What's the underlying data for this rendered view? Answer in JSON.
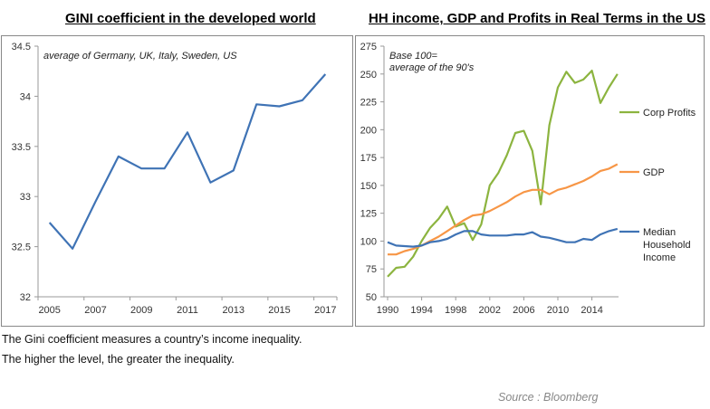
{
  "chart_data": [
    {
      "type": "line",
      "title": "GINI coefficient in the developed world",
      "annotation": "average of Germany, UK, Italy, Sweden, US",
      "x": [
        2005,
        2006,
        2007,
        2008,
        2009,
        2010,
        2011,
        2012,
        2013,
        2014,
        2015,
        2016,
        2017
      ],
      "xticks": [
        "2005",
        "2007",
        "2009",
        "2011",
        "2013",
        "2015",
        "2017"
      ],
      "yticks": [
        "32",
        "32.5",
        "33",
        "33.5",
        "34",
        "34.5"
      ],
      "ylim": [
        32,
        34.5
      ],
      "grid": false,
      "series": [
        {
          "color": "#3f73b5",
          "values": [
            32.74,
            32.48,
            32.95,
            33.4,
            33.28,
            33.28,
            33.64,
            33.14,
            33.26,
            33.92,
            33.9,
            33.96,
            34.22
          ]
        }
      ]
    },
    {
      "type": "line",
      "title": "HH income, GDP and Profits in Real Terms in the US",
      "annotation": [
        "Base 100=",
        "average of the 90's"
      ],
      "x": [
        1990,
        1991,
        1992,
        1993,
        1994,
        1995,
        1996,
        1997,
        1998,
        1999,
        2000,
        2001,
        2002,
        2003,
        2004,
        2005,
        2006,
        2007,
        2008,
        2009,
        2010,
        2011,
        2012,
        2013,
        2014,
        2015,
        2016,
        2017
      ],
      "xticks": [
        "1990",
        "1994",
        "1998",
        "2002",
        "2006",
        "2010",
        "2014"
      ],
      "yticks": [
        "50",
        "75",
        "100",
        "125",
        "150",
        "175",
        "200",
        "225",
        "250",
        "275"
      ],
      "ylim": [
        50,
        275
      ],
      "grid": false,
      "legend": "right",
      "series": [
        {
          "name": "Corp Profits",
          "color": "#8cb43f",
          "values": [
            68,
            76,
            77,
            86,
            100,
            112,
            120,
            131,
            113,
            116,
            101,
            115,
            150,
            161,
            177,
            197,
            199,
            181,
            133,
            204,
            238,
            252,
            242,
            245,
            253,
            224,
            238,
            250
          ]
        },
        {
          "name": "GDP",
          "color": "#f79646",
          "values": [
            88,
            88,
            91,
            93,
            96,
            100,
            104,
            109,
            114,
            119,
            123,
            124,
            127,
            131,
            135,
            140,
            144,
            146,
            146,
            142,
            146,
            148,
            151,
            154,
            158,
            163,
            165,
            169
          ]
        },
        {
          "name": "Median Household Income",
          "legend_lines": [
            "Median",
            "Household",
            "Income"
          ],
          "color": "#3f73b5",
          "values": [
            99,
            96,
            95.5,
            95,
            96,
            99,
            100,
            102,
            106,
            109,
            109,
            106,
            105,
            105,
            105,
            106,
            106,
            108,
            104,
            103,
            101,
            99,
            99,
            102,
            101,
            106,
            109,
            111
          ]
        }
      ]
    }
  ],
  "footnotes": [
    "The Gini coefficient measures a country’s income inequality.",
    "The higher the level, the greater the inequality."
  ],
  "source": "Source : Bloomberg"
}
